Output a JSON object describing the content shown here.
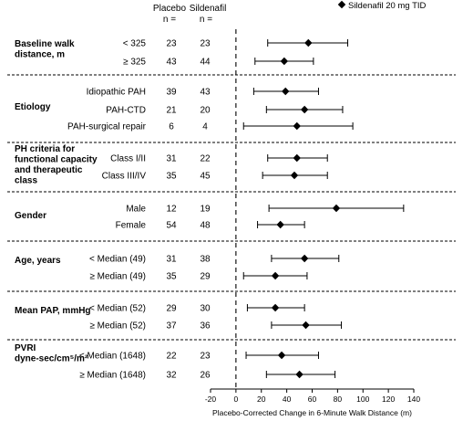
{
  "header": {
    "placebo": "Placebo",
    "sildenafil": "Sildenafil",
    "n_placebo": "n =",
    "n_sildenafil": "n ="
  },
  "legend": {
    "label": "Sildenafil 20 mg TID",
    "marker": "diamond-icon"
  },
  "chart_data": {
    "type": "forest",
    "xlabel": "Placebo-Corrected Change in 6-Minute Walk Distance (m)",
    "xlim": [
      -20,
      140
    ],
    "xticks": [
      -20,
      0,
      20,
      40,
      60,
      80,
      100,
      120,
      140
    ],
    "reference_line": 0,
    "groups": [
      {
        "title": [
          "Baseline walk",
          "distance, m"
        ],
        "rows": [
          {
            "label": "< 325",
            "placebo_n": 23,
            "sildenafil_n": 23,
            "estimate": 57,
            "ci": [
              25,
              88
            ]
          },
          {
            "label": "≥ 325",
            "placebo_n": 43,
            "sildenafil_n": 44,
            "estimate": 38,
            "ci": [
              15,
              61
            ]
          }
        ]
      },
      {
        "title": [
          "Etiology"
        ],
        "rows": [
          {
            "label": "Idiopathic PAH",
            "placebo_n": 39,
            "sildenafil_n": 43,
            "estimate": 39,
            "ci": [
              14,
              65
            ]
          },
          {
            "label": "PAH-CTD",
            "placebo_n": 21,
            "sildenafil_n": 20,
            "estimate": 54,
            "ci": [
              24,
              84
            ]
          },
          {
            "label": "PAH-surgical repair",
            "placebo_n": 6,
            "sildenafil_n": 4,
            "estimate": 48,
            "ci": [
              6,
              92
            ]
          }
        ]
      },
      {
        "title": [
          "PH criteria for",
          "functional capacity",
          "and therapeutic",
          "class"
        ],
        "rows": [
          {
            "label": "Class I/II",
            "placebo_n": 31,
            "sildenafil_n": 22,
            "estimate": 48,
            "ci": [
              25,
              72
            ]
          },
          {
            "label": "Class III/IV",
            "placebo_n": 35,
            "sildenafil_n": 45,
            "estimate": 46,
            "ci": [
              21,
              72
            ]
          }
        ]
      },
      {
        "title": [
          "Gender"
        ],
        "rows": [
          {
            "label": "Male",
            "placebo_n": 12,
            "sildenafil_n": 19,
            "estimate": 79,
            "ci": [
              26,
              132
            ]
          },
          {
            "label": "Female",
            "placebo_n": 54,
            "sildenafil_n": 48,
            "estimate": 35,
            "ci": [
              17,
              54
            ]
          }
        ]
      },
      {
        "title": [
          "Age, years"
        ],
        "rows": [
          {
            "label": "< Median (49)",
            "placebo_n": 31,
            "sildenafil_n": 38,
            "estimate": 54,
            "ci": [
              28,
              81
            ]
          },
          {
            "label": "≥ Median (49)",
            "placebo_n": 35,
            "sildenafil_n": 29,
            "estimate": 31,
            "ci": [
              6,
              56
            ]
          }
        ]
      },
      {
        "title": [
          "Mean PAP, mmHg"
        ],
        "rows": [
          {
            "label": "< Median (52)",
            "placebo_n": 29,
            "sildenafil_n": 30,
            "estimate": 31,
            "ci": [
              9,
              54
            ]
          },
          {
            "label": "≥ Median (52)",
            "placebo_n": 37,
            "sildenafil_n": 36,
            "estimate": 55,
            "ci": [
              28,
              83
            ]
          }
        ]
      },
      {
        "title": [
          "PVRI",
          "dyne-sec/cm⁵/m²"
        ],
        "rows": [
          {
            "label": "< Median (1648)",
            "placebo_n": 22,
            "sildenafil_n": 23,
            "estimate": 36,
            "ci": [
              8,
              65
            ]
          },
          {
            "label": "≥ Median (1648)",
            "placebo_n": 32,
            "sildenafil_n": 26,
            "estimate": 50,
            "ci": [
              24,
              78
            ]
          }
        ]
      }
    ]
  }
}
